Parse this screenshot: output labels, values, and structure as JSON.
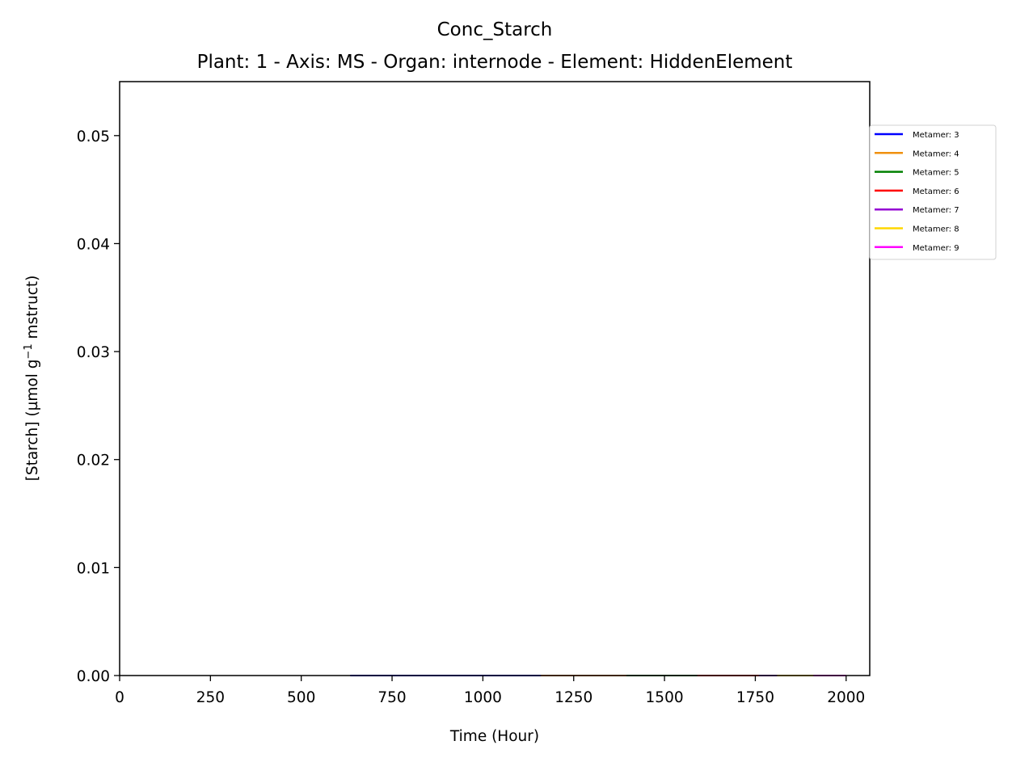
{
  "chart_data": {
    "type": "line",
    "title": "Conc_Starch",
    "subtitle": "Plant: 1 - Axis: MS - Organ: internode - Element: HiddenElement",
    "xlabel": "Time (Hour)",
    "ylabel_main": "[Starch] (µmol g",
    "ylabel_sup": "−1",
    "ylabel_tail": " mstruct)",
    "xlim": [
      0,
      2065
    ],
    "ylim": [
      0,
      0.055
    ],
    "xticks": [
      0,
      250,
      500,
      750,
      1000,
      1250,
      1500,
      1750,
      2000
    ],
    "xtick_labels": [
      "0",
      "250",
      "500",
      "750",
      "1000",
      "1250",
      "1500",
      "1750",
      "2000"
    ],
    "yticks": [
      0,
      0.01,
      0.02,
      0.03,
      0.04,
      0.05
    ],
    "ytick_labels": [
      "0.00",
      "0.01",
      "0.02",
      "0.03",
      "0.04",
      "0.05"
    ],
    "grid": false,
    "legend_position": "outside right, top",
    "series": [
      {
        "name": "Metamer: 3",
        "color": "#0000ff",
        "x": [
          635,
          1160
        ],
        "y": [
          0,
          0
        ]
      },
      {
        "name": "Metamer: 4",
        "color": "#f0900f",
        "x": [
          1160,
          1395
        ],
        "y": [
          0,
          0
        ]
      },
      {
        "name": "Metamer: 5",
        "color": "#008000",
        "x": [
          1395,
          1590
        ],
        "y": [
          0,
          0
        ]
      },
      {
        "name": "Metamer: 6",
        "color": "#ff0000",
        "x": [
          1590,
          1760
        ],
        "y": [
          0,
          0
        ]
      },
      {
        "name": "Metamer: 7",
        "color": "#9400d3",
        "x": [
          1760,
          1810
        ],
        "y": [
          0,
          0
        ]
      },
      {
        "name": "Metamer: 8",
        "color": "#ffd700",
        "x": [
          1810,
          1910
        ],
        "y": [
          0,
          0
        ]
      },
      {
        "name": "Metamer: 9",
        "color": "#ff00ff",
        "x": [
          1910,
          2000
        ],
        "y": [
          0,
          0
        ]
      }
    ]
  }
}
